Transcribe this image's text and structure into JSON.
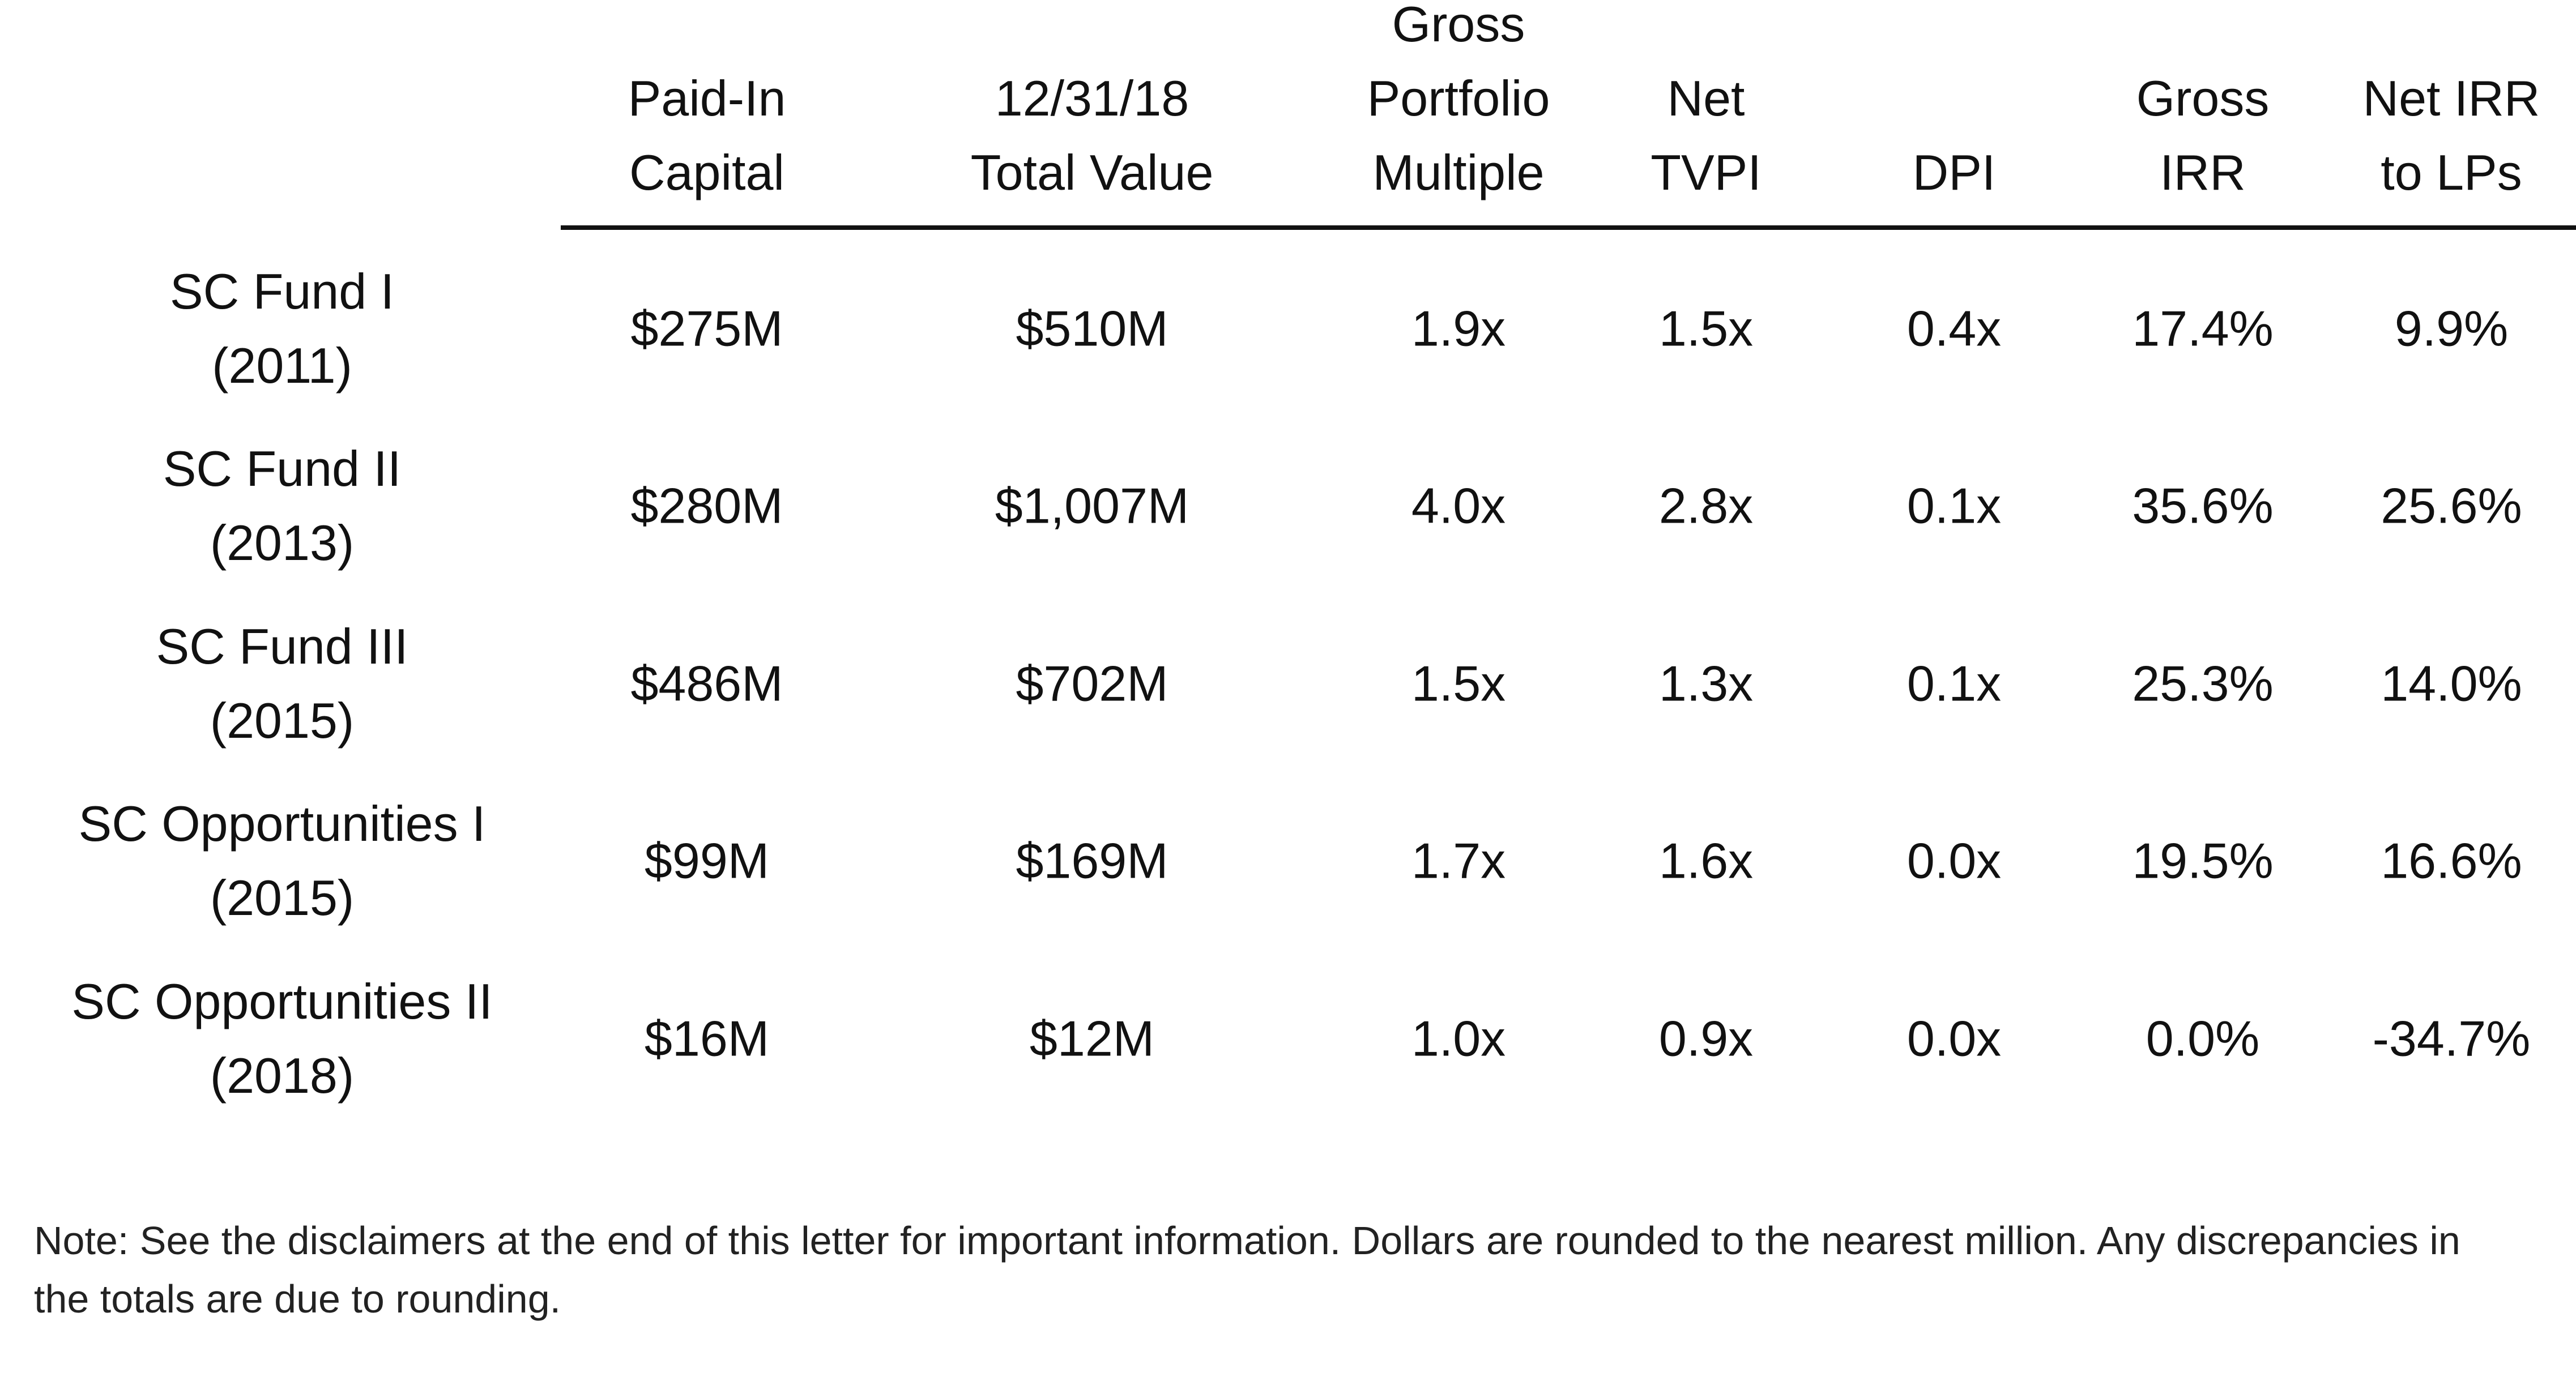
{
  "table": {
    "columns": [
      [
        "Paid-In",
        "Capital"
      ],
      [
        "12/31/18",
        "Total Value"
      ],
      [
        "Gross",
        "Portfolio",
        "Multiple"
      ],
      [
        "Net",
        "TVPI"
      ],
      [
        "DPI"
      ],
      [
        "Gross",
        "IRR"
      ],
      [
        "Net IRR",
        "to LPs"
      ]
    ],
    "rows": [
      {
        "fund": [
          "SC Fund I",
          "(2011)"
        ],
        "cells": [
          "$275M",
          "$510M",
          "1.9x",
          "1.5x",
          "0.4x",
          "17.4%",
          "9.9%"
        ]
      },
      {
        "fund": [
          "SC Fund II",
          "(2013)"
        ],
        "cells": [
          "$280M",
          "$1,007M",
          "4.0x",
          "2.8x",
          "0.1x",
          "35.6%",
          "25.6%"
        ]
      },
      {
        "fund": [
          "SC Fund III",
          "(2015)"
        ],
        "cells": [
          "$486M",
          "$702M",
          "1.5x",
          "1.3x",
          "0.1x",
          "25.3%",
          "14.0%"
        ]
      },
      {
        "fund": [
          "SC Opportunities I",
          "(2015)"
        ],
        "cells": [
          "$99M",
          "$169M",
          "1.7x",
          "1.6x",
          "0.0x",
          "19.5%",
          "16.6%"
        ]
      },
      {
        "fund": [
          "SC Opportunities II",
          "(2018)"
        ],
        "cells": [
          "$16M",
          "$12M",
          "1.0x",
          "0.9x",
          "0.0x",
          "0.0%",
          "-34.7%"
        ]
      }
    ]
  },
  "note": "Note: See the disclaimers at the end of this letter for important information. Dollars are rounded to the nearest million. Any discrepancies in the totals are due to rounding."
}
